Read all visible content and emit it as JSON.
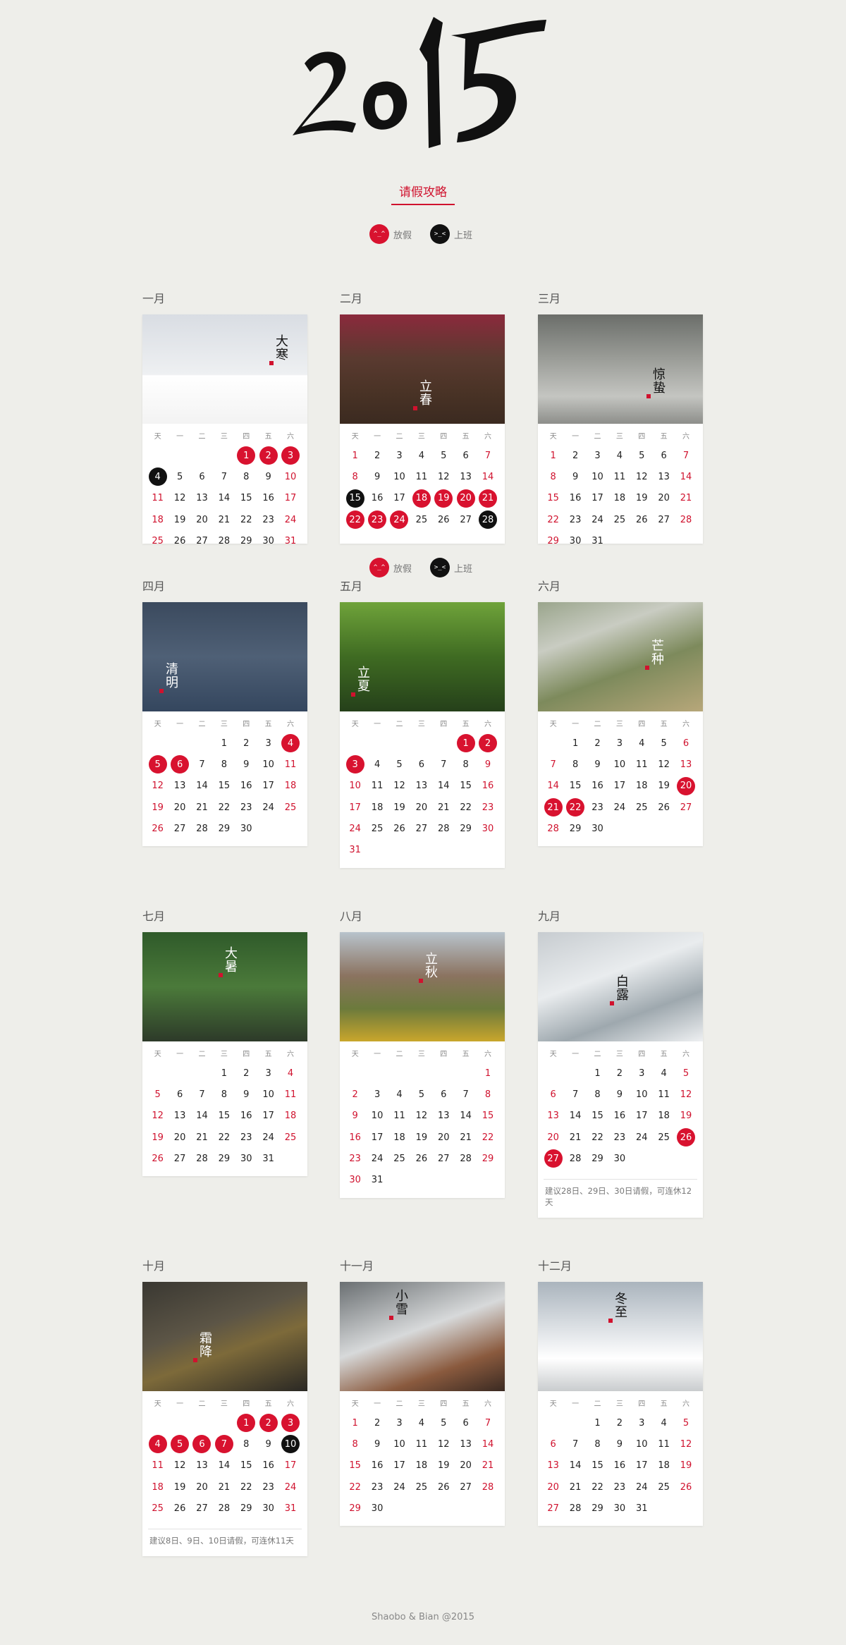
{
  "header": {
    "logo_text": "2015",
    "tips_link": "请假攻略",
    "legend": {
      "off": "放假",
      "off_face": "^_^",
      "work": "上班",
      "work_face": ">_<"
    }
  },
  "weekdays": [
    "天",
    "一",
    "二",
    "三",
    "四",
    "五",
    "六"
  ],
  "colors": {
    "accent": "#d8122f",
    "work": "#111111",
    "background": "#eeeeea"
  },
  "months": [
    {
      "name": "一月",
      "term": "大寒",
      "start": 4,
      "days": 31,
      "off": [
        1,
        2,
        3
      ],
      "work": [
        4
      ],
      "note": ""
    },
    {
      "name": "二月",
      "term": "立春",
      "start": 0,
      "days": 28,
      "off": [
        18,
        19,
        20,
        21,
        22,
        23,
        24
      ],
      "work": [
        15,
        28
      ],
      "note": ""
    },
    {
      "name": "三月",
      "term": "惊蛰",
      "start": 0,
      "days": 31,
      "off": [],
      "work": [],
      "note": ""
    },
    {
      "name": "四月",
      "term": "清明",
      "start": 3,
      "days": 30,
      "off": [
        4,
        5,
        6
      ],
      "work": [],
      "note": ""
    },
    {
      "name": "五月",
      "term": "立夏",
      "start": 5,
      "days": 31,
      "off": [
        1,
        2,
        3
      ],
      "work": [],
      "note": ""
    },
    {
      "name": "六月",
      "term": "芒种",
      "start": 1,
      "days": 30,
      "off": [
        20,
        21,
        22
      ],
      "work": [],
      "note": ""
    },
    {
      "name": "七月",
      "term": "大暑",
      "start": 3,
      "days": 31,
      "off": [],
      "work": [],
      "note": ""
    },
    {
      "name": "八月",
      "term": "立秋",
      "start": 6,
      "days": 31,
      "off": [],
      "work": [],
      "note": ""
    },
    {
      "name": "九月",
      "term": "白露",
      "start": 2,
      "days": 30,
      "off": [
        26,
        27
      ],
      "work": [],
      "note": "建议28日、29日、30日请假，可连休12天"
    },
    {
      "name": "十月",
      "term": "霜降",
      "start": 4,
      "days": 31,
      "off": [
        1,
        2,
        3,
        4,
        5,
        6,
        7
      ],
      "work": [
        10
      ],
      "note": "建议8日、9日、10日请假，可连休11天"
    },
    {
      "name": "十一月",
      "term": "小雪",
      "start": 0,
      "days": 30,
      "off": [],
      "work": [],
      "note": ""
    },
    {
      "name": "十二月",
      "term": "冬至",
      "start": 2,
      "days": 31,
      "off": [],
      "work": [],
      "note": ""
    }
  ],
  "footer": "Shaobo & Bian @2015"
}
